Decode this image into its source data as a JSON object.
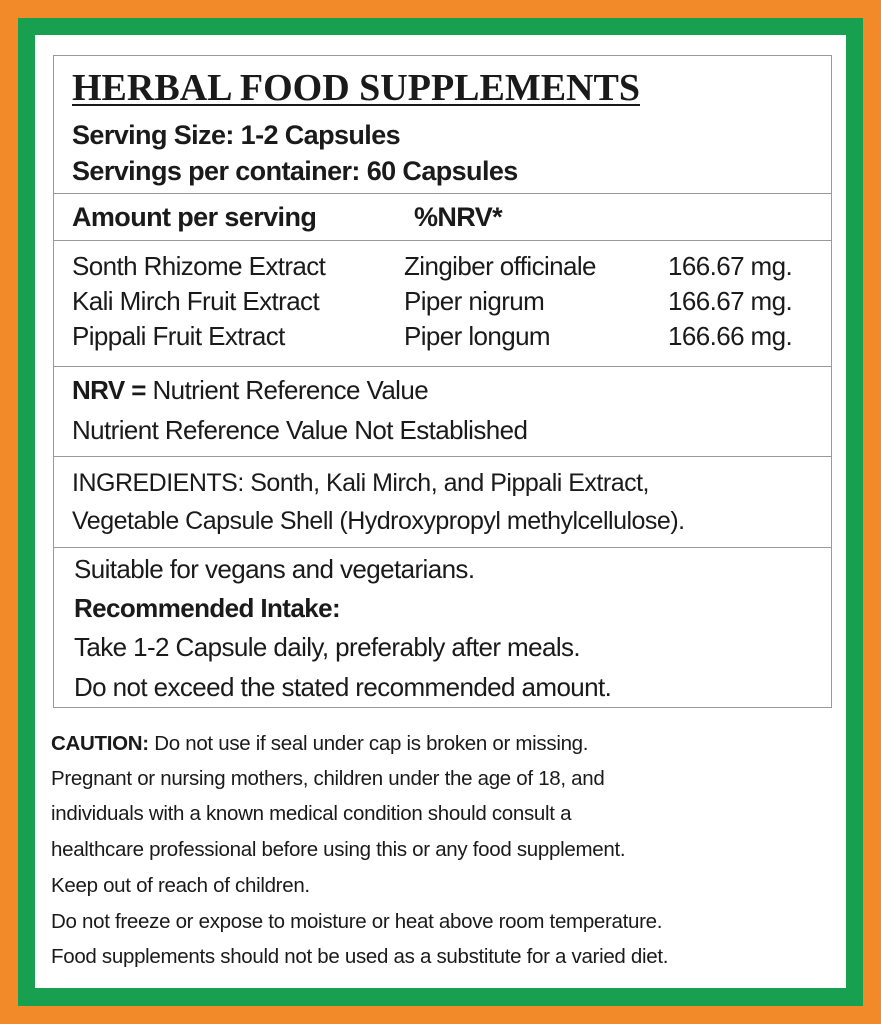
{
  "colors": {
    "outer_border": "#F28A2A",
    "inner_border": "#17A050",
    "background": "#FFFFFF"
  },
  "header": {
    "title": "HERBAL FOOD SUPPLEMENTS",
    "serving_size": "Serving Size: 1-2 Capsules",
    "servings_per_container": "Servings per container: 60 Capsules"
  },
  "table_header": {
    "amount": "Amount per serving",
    "nrv": "%NRV*"
  },
  "ingredients_table": [
    {
      "name": "Sonth Rhizome Extract",
      "botanical": "Zingiber officinale",
      "amount": "166.67 mg."
    },
    {
      "name": "Kali Mirch Fruit Extract",
      "botanical": "Piper nigrum",
      "amount": "166.67 mg."
    },
    {
      "name": "Pippali Fruit Extract",
      "botanical": "Piper longum",
      "amount": "166.66 mg."
    }
  ],
  "nrv": {
    "label": "NRV =",
    "definition": "Nutrient Reference Value",
    "not_established": "Nutrient Reference Value Not Established"
  },
  "ingredients": {
    "line1": "INGREDIENTS: Sonth, Kali Mirch, and Pippali Extract,",
    "line2": "Vegetable Capsule Shell (Hydroxypropyl methylcellulose)."
  },
  "intake": {
    "suitable": "Suitable for vegans and vegetarians.",
    "heading": "Recommended Intake:",
    "line1": "Take 1-2 Capsule daily, preferably after meals.",
    "line2": "Do not exceed the stated recommended amount."
  },
  "caution": {
    "label": "CAUTION:",
    "lines": [
      "Do not use if seal under cap is broken or missing.",
      "Pregnant or nursing mothers, children under the age of 18, and",
      "individuals with a known medical condition should consult a",
      "healthcare professional before using this or any food supplement.",
      "Keep out of reach of children.",
      "Do not freeze or expose to moisture or heat above room temperature.",
      "Food supplements should not be used as a substitute for a varied diet."
    ]
  }
}
